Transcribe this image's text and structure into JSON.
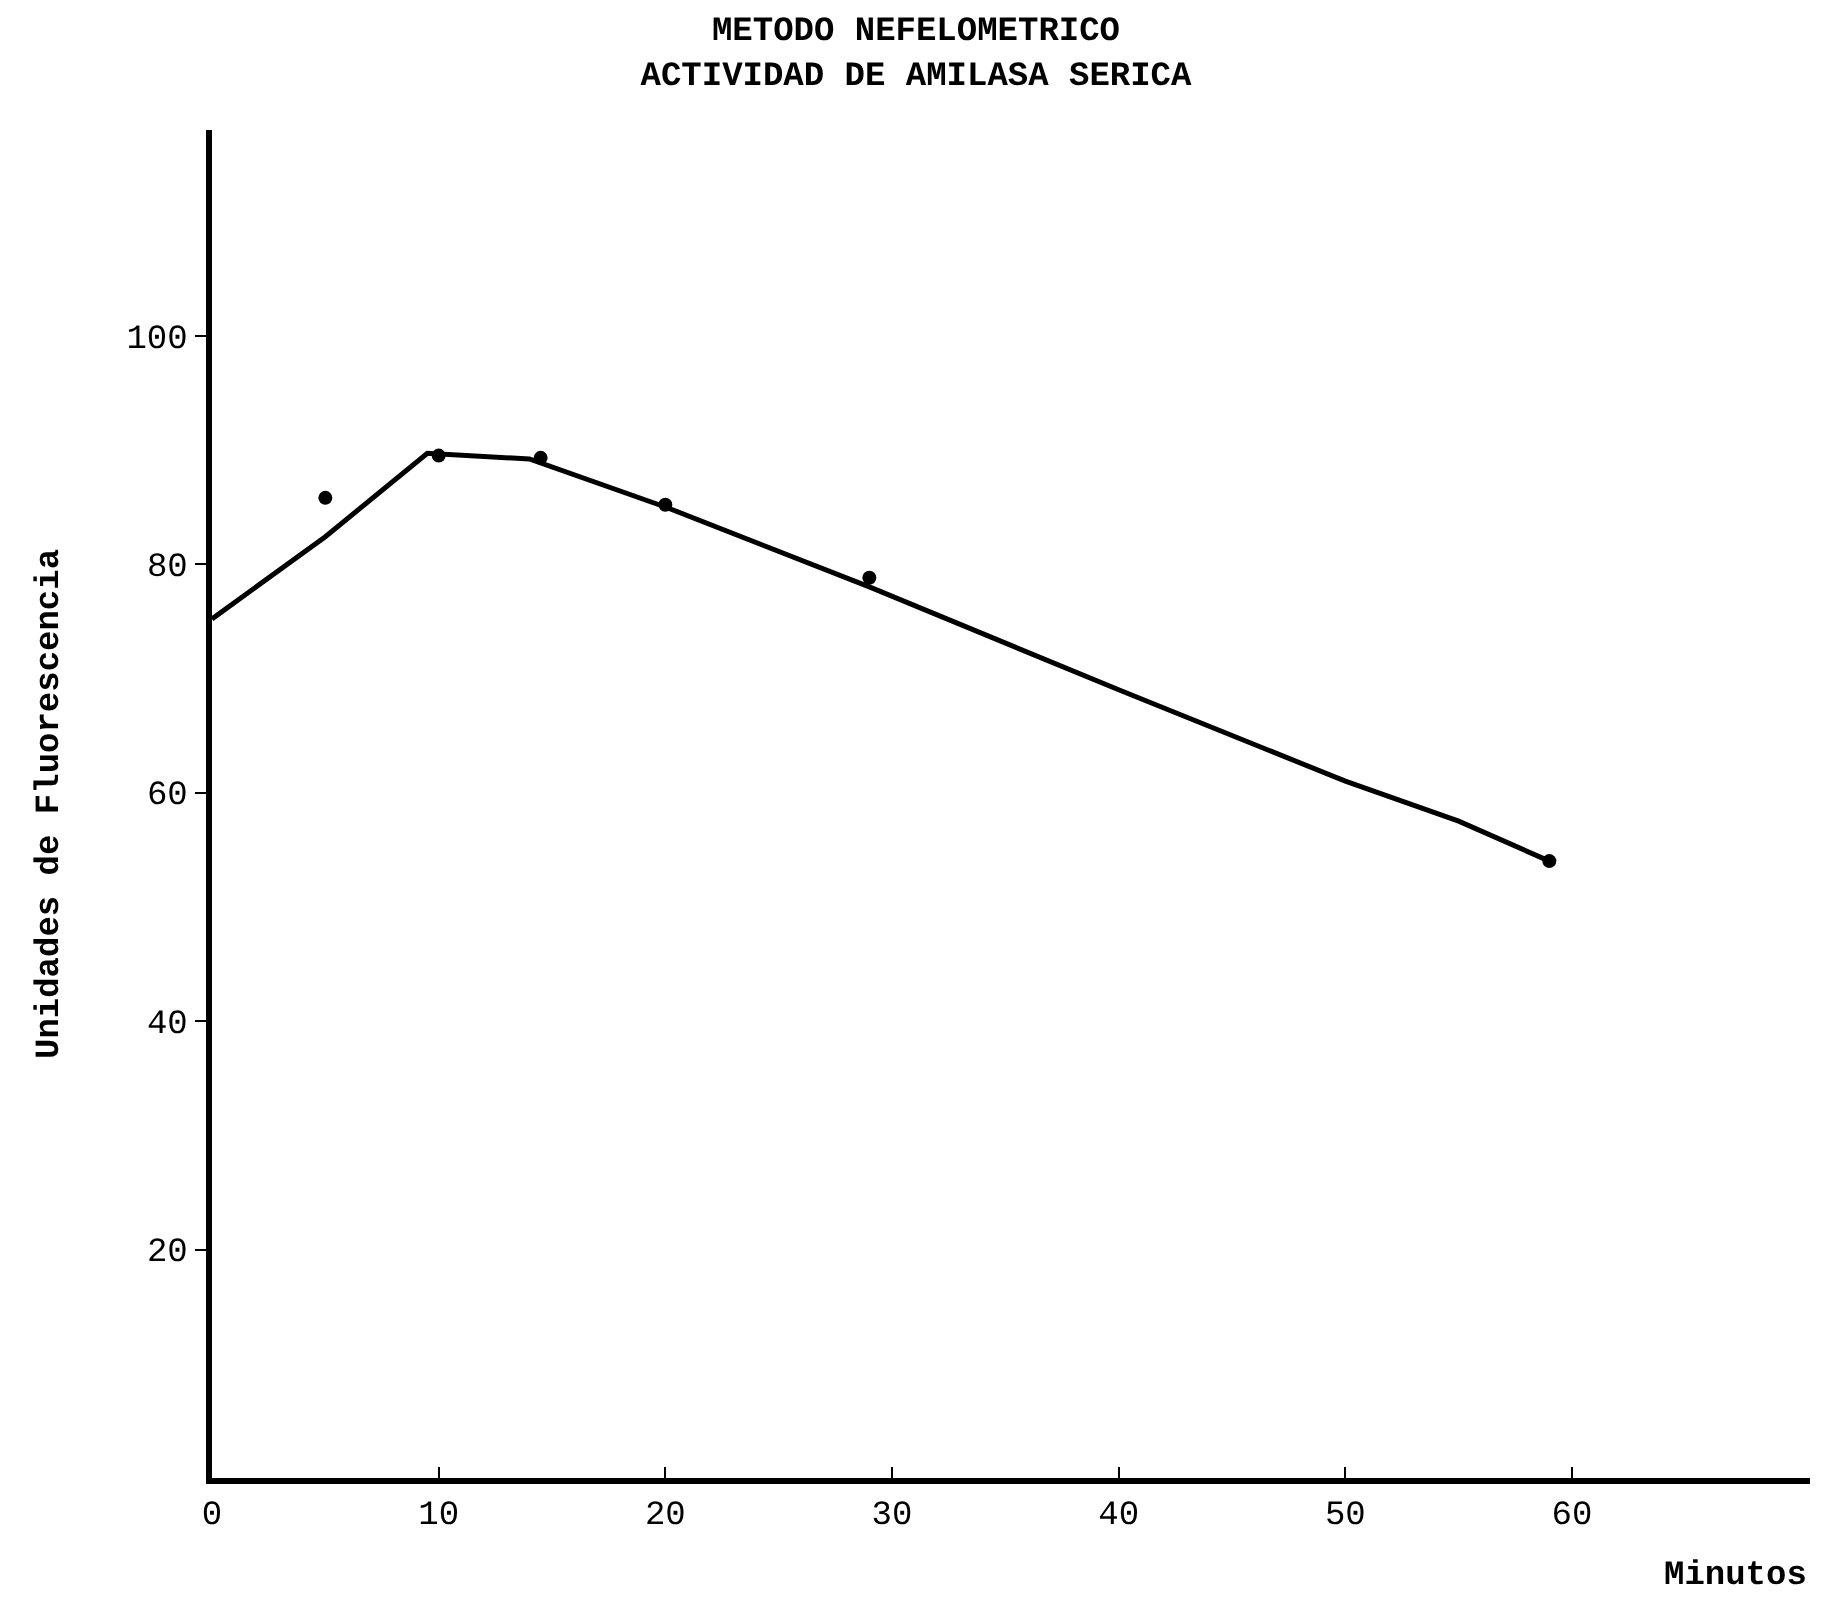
{
  "chart_data": {
    "type": "line",
    "title": "METODO NEFELOMETRICO\nACTIVIDAD DE AMILASA SERICA",
    "xlabel": "Minutos",
    "ylabel": "Unidades de Fluorescencia",
    "xlim": [
      0,
      70.5
    ],
    "ylim": [
      0,
      118
    ],
    "xticks": [
      0,
      10,
      20,
      30,
      40,
      50,
      60
    ],
    "yticks": [
      20,
      40,
      60,
      80,
      100
    ],
    "series": [
      {
        "type": "scatter",
        "marker": "circle",
        "color": "#000000",
        "x": [
          5,
          10,
          14.5,
          20,
          29,
          59
        ],
        "values": [
          85.8,
          89.5,
          89.3,
          85.2,
          78.8,
          54
        ]
      },
      {
        "marker": "none",
        "line_style": "solid",
        "color": "#000000",
        "x": [
          0,
          5,
          9.5,
          14,
          20,
          29,
          40,
          50,
          55,
          59
        ],
        "values": [
          75.2,
          82.4,
          89.7,
          89.2,
          85,
          78,
          69,
          61,
          57.5,
          54
        ]
      }
    ]
  }
}
